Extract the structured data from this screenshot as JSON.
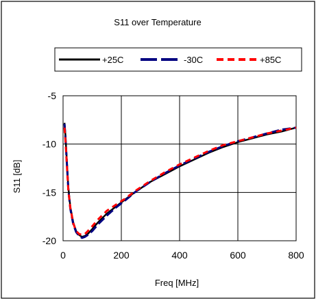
{
  "chart_data": {
    "type": "line",
    "title": "S11 over Temperature",
    "xlabel": "Freq [MHz]",
    "ylabel": "S11 [dB]",
    "xlim": [
      0,
      800
    ],
    "ylim": [
      -20,
      -5
    ],
    "xticks": [
      0,
      200,
      400,
      600,
      800
    ],
    "yticks": [
      -5,
      -10,
      -15,
      -20
    ],
    "grid": true,
    "legend_position": "top",
    "series": [
      {
        "name": "+25C",
        "color": "#000000",
        "style": "solid",
        "x": [
          5,
          8,
          12,
          18,
          25,
          35,
          45,
          55,
          65,
          75,
          85,
          100,
          120,
          150,
          180,
          210,
          250,
          300,
          350,
          400,
          450,
          500,
          550,
          600,
          650,
          700,
          750,
          800
        ],
        "y": [
          -7.8,
          -9.0,
          -11.2,
          -14.5,
          -16.5,
          -18.1,
          -19.0,
          -19.4,
          -19.6,
          -19.5,
          -19.3,
          -18.8,
          -18.1,
          -17.2,
          -16.5,
          -15.8,
          -14.9,
          -13.9,
          -13.1,
          -12.3,
          -11.6,
          -10.9,
          -10.3,
          -9.8,
          -9.4,
          -9.0,
          -8.7,
          -8.3
        ]
      },
      {
        "name": "-30C",
        "color": "#000080",
        "style": "dashed",
        "x": [
          5,
          8,
          12,
          18,
          25,
          35,
          45,
          55,
          65,
          75,
          85,
          100,
          120,
          150,
          180,
          210,
          250,
          300,
          350,
          400,
          450,
          500,
          550,
          600,
          650,
          700,
          750,
          800
        ],
        "y": [
          -7.9,
          -9.2,
          -11.4,
          -14.7,
          -16.7,
          -18.3,
          -19.1,
          -19.5,
          -19.7,
          -19.6,
          -19.4,
          -19.0,
          -18.3,
          -17.4,
          -16.6,
          -15.9,
          -14.9,
          -13.9,
          -13.0,
          -12.2,
          -11.5,
          -10.8,
          -10.2,
          -9.7,
          -9.3,
          -8.9,
          -8.5,
          -8.3
        ]
      },
      {
        "name": "+85C",
        "color": "#ff0000",
        "style": "dashed",
        "x": [
          5,
          8,
          12,
          18,
          25,
          35,
          45,
          55,
          65,
          75,
          85,
          100,
          120,
          150,
          180,
          210,
          250,
          300,
          350,
          400,
          450,
          500,
          550,
          600,
          650,
          700,
          750,
          800
        ],
        "y": [
          -8.3,
          -9.5,
          -11.6,
          -14.8,
          -16.6,
          -18.2,
          -19.0,
          -19.3,
          -19.4,
          -19.3,
          -19.0,
          -18.5,
          -17.8,
          -16.9,
          -16.3,
          -15.7,
          -14.8,
          -13.8,
          -12.9,
          -12.1,
          -11.4,
          -10.7,
          -10.1,
          -9.7,
          -9.3,
          -8.9,
          -8.6,
          -8.3
        ]
      }
    ]
  }
}
